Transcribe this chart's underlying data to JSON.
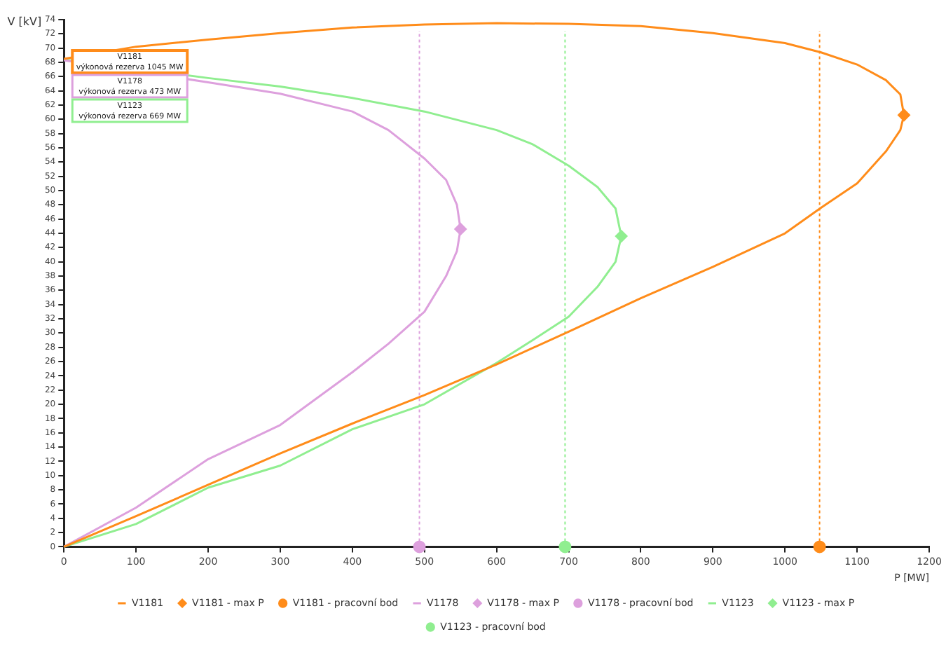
{
  "chart_data": {
    "type": "line",
    "xlabel": "P [MW]",
    "ylabel": "V [kV]",
    "xlim": [
      0,
      1200
    ],
    "xticks": [
      0,
      100,
      200,
      300,
      400,
      500,
      600,
      700,
      800,
      900,
      1000,
      1100,
      1200
    ],
    "ylim": [
      0,
      74
    ],
    "yticks": [
      0,
      2,
      4,
      6,
      8,
      10,
      12,
      14,
      16,
      18,
      20,
      22,
      24,
      26,
      28,
      30,
      32,
      34,
      36,
      38,
      40,
      42,
      44,
      46,
      48,
      50,
      52,
      54,
      56,
      58,
      60,
      62,
      64,
      66,
      68,
      70,
      72,
      74
    ],
    "grid": false,
    "legend": "bottom",
    "line_style": "solid",
    "series": [
      {
        "name": "V1181",
        "type": "line",
        "marker": "none",
        "color": "#ff8c1a",
        "x": [
          0,
          100,
          200,
          300,
          400,
          500,
          600,
          700,
          800,
          900,
          1000,
          1050,
          1100,
          1140,
          1160,
          1165,
          1160,
          1140,
          1100,
          1050,
          1000,
          900,
          800,
          700,
          600,
          500,
          400,
          300,
          200,
          100,
          50,
          0
        ],
        "values": [
          0,
          4.3,
          8.7,
          13.1,
          17.3,
          21.3,
          25.6,
          30.2,
          34.9,
          39.3,
          44,
          47.6,
          51,
          55.5,
          58.5,
          60.6,
          63.5,
          65.5,
          67.7,
          69.4,
          70.7,
          72.1,
          73.1,
          73.4,
          73.5,
          73.3,
          72.9,
          72.1,
          71.2,
          70.2,
          null,
          68.5
        ]
      },
      {
        "name": "V1181 - max P",
        "type": "scatter",
        "marker": "diamond",
        "color": "#ff8c1a",
        "x": [
          1165
        ],
        "values": [
          60.6
        ]
      },
      {
        "name": "V1181 - pracovní bod",
        "type": "scatter",
        "marker": "circle",
        "color": "#ff8c1a",
        "x": [
          1048
        ],
        "values": [
          0
        ]
      },
      {
        "name": "V1178",
        "type": "line",
        "marker": "none",
        "color": "#dda0dd",
        "x": [
          0,
          100,
          200,
          300,
          400,
          450,
          500,
          530,
          545,
          550,
          545,
          530,
          500,
          450,
          400,
          300,
          200,
          100,
          0
        ],
        "values": [
          0,
          5.5,
          12.3,
          17.1,
          24.5,
          28.5,
          33,
          38,
          41.5,
          44.6,
          48,
          51.5,
          54.5,
          58.5,
          61.1,
          63.6,
          65.2,
          null,
          68.3
        ]
      },
      {
        "name": "V1178 - max P",
        "type": "scatter",
        "marker": "diamond",
        "color": "#dda0dd",
        "x": [
          550
        ],
        "values": [
          44.6
        ]
      },
      {
        "name": "V1178 - pracovní bod",
        "type": "scatter",
        "marker": "circle",
        "color": "#dda0dd",
        "x": [
          493
        ],
        "values": [
          0
        ]
      },
      {
        "name": "V1123",
        "type": "line",
        "marker": "none",
        "color": "#90ee90",
        "x": [
          0,
          100,
          200,
          300,
          400,
          500,
          600,
          650,
          700,
          740,
          765,
          773,
          765,
          740,
          700,
          650,
          600,
          500,
          400,
          300,
          200,
          100,
          0
        ],
        "values": [
          0,
          3.2,
          8.3,
          11.4,
          16.5,
          20,
          25.8,
          29,
          32.3,
          36.5,
          40,
          43.6,
          47.5,
          50.5,
          53.5,
          56.5,
          58.5,
          61.1,
          63,
          64.6,
          65.8,
          null,
          68.4
        ]
      },
      {
        "name": "V1123 - max P",
        "type": "scatter",
        "marker": "diamond",
        "color": "#90ee90",
        "x": [
          773
        ],
        "values": [
          43.6
        ]
      },
      {
        "name": "V1123 - pracovní bod",
        "type": "scatter",
        "marker": "circle",
        "color": "#90ee90",
        "x": [
          695
        ],
        "values": [
          0
        ]
      }
    ],
    "ref_lines": [
      {
        "axis": "x",
        "value": 1048,
        "color": "#ff8c1a",
        "line_style": "dotted"
      },
      {
        "axis": "x",
        "value": 493,
        "color": "#dda0dd",
        "line_style": "dotted"
      },
      {
        "axis": "x",
        "value": 695,
        "color": "#90ee90",
        "line_style": "dotted"
      }
    ],
    "annotations": [
      "V1181\nvýkonová rezerva 1045 MW",
      "V1178\nvýkonová rezerva 473 MW",
      "V1123\nvýkonová rezerva 669 MW"
    ]
  }
}
